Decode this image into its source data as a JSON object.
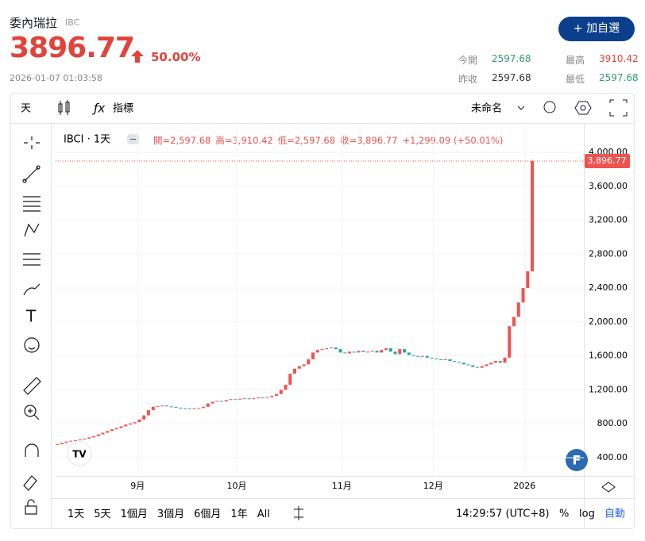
{
  "header": {
    "name": "委內瑞拉",
    "code": "IBC",
    "price": 3896.77,
    "change": "50.00%",
    "timestamp": "2026-01-07 01:03:58",
    "button": "加自選",
    "stats": [
      {
        "label": "今開",
        "value": 2597.68
      },
      {
        "label": "最高",
        "value": 3910.42
      },
      {
        "label": "昨收",
        "value": 2597.68
      },
      {
        "label": "最低",
        "value": 2597.68
      }
    ]
  },
  "toolbar": {
    "interval": "天",
    "indicators": "指標",
    "layout": "未命名"
  },
  "chart_data": {
    "type": "candlestick",
    "symbol": "IBCI · 1天",
    "legend": {
      "open": "開=2,597.68",
      "high": "高=3,910.42",
      "low": "低=2,597.68",
      "close": "收=3,896.77",
      "change": "+1,299.09 (+50.01%)"
    },
    "last_label": "3,896.77",
    "up_color": "#ef5350",
    "down_color": "#26a69a",
    "open": [
      550,
      560,
      575,
      590,
      600,
      605,
      615,
      625,
      640,
      655,
      675,
      695,
      715,
      735,
      750,
      770,
      790,
      805,
      820,
      850,
      900,
      960,
      1000,
      1010,
      1015,
      1005,
      1000,
      990,
      985,
      980,
      975,
      980,
      985,
      1000,
      1040,
      1060,
      1070,
      1065,
      1080,
      1090,
      1085,
      1095,
      1100,
      1090,
      1100,
      1110,
      1105,
      1115,
      1130,
      1150,
      1200,
      1260,
      1390,
      1450,
      1480,
      1500,
      1560,
      1640,
      1670,
      1680,
      1690,
      1700,
      1680,
      1640,
      1630,
      1650,
      1640,
      1660,
      1645,
      1650,
      1660,
      1640,
      1670,
      1690,
      1650,
      1620,
      1680,
      1640,
      1610,
      1600,
      1590,
      1600,
      1580,
      1570,
      1560,
      1550,
      1560,
      1540,
      1530,
      1520,
      1500,
      1490,
      1470,
      1460,
      1480,
      1500,
      1520,
      1540,
      1520,
      1580,
      1950,
      2060,
      2230,
      2400,
      2597.68
    ],
    "close": [
      560,
      575,
      590,
      600,
      605,
      615,
      625,
      640,
      655,
      675,
      695,
      715,
      735,
      750,
      770,
      790,
      805,
      820,
      850,
      900,
      960,
      1000,
      1010,
      1015,
      1005,
      1000,
      990,
      985,
      980,
      975,
      980,
      985,
      1000,
      1040,
      1060,
      1070,
      1065,
      1080,
      1090,
      1085,
      1095,
      1100,
      1090,
      1100,
      1110,
      1105,
      1115,
      1130,
      1150,
      1200,
      1260,
      1390,
      1450,
      1480,
      1500,
      1560,
      1640,
      1670,
      1680,
      1690,
      1700,
      1680,
      1640,
      1630,
      1650,
      1640,
      1660,
      1645,
      1650,
      1660,
      1640,
      1670,
      1690,
      1650,
      1620,
      1680,
      1640,
      1610,
      1600,
      1590,
      1600,
      1580,
      1570,
      1560,
      1550,
      1560,
      1540,
      1530,
      1520,
      1500,
      1490,
      1470,
      1460,
      1480,
      1500,
      1520,
      1540,
      1520,
      1580,
      1950,
      2060,
      2230,
      2400,
      2597.68,
      3896.77
    ],
    "xlim": [
      -0.35,
      115.3
    ],
    "xticks": [
      {
        "value": 17.6,
        "label": "9月"
      },
      {
        "value": 39.3,
        "label": "10月"
      },
      {
        "value": 62.3,
        "label": "11月"
      },
      {
        "value": 82.3,
        "label": "12月"
      },
      {
        "value": 102.3,
        "label": "2026"
      }
    ],
    "ylim": [
      185,
      4318
    ],
    "yticks": [
      {
        "value": 400,
        "label": "400.00"
      },
      {
        "value": 800,
        "label": "800.00"
      },
      {
        "value": 1200,
        "label": "1,200.00"
      },
      {
        "value": 1600,
        "label": "1,600.00"
      },
      {
        "value": 2000,
        "label": "2,000.00"
      },
      {
        "value": 2400,
        "label": "2,400.00"
      },
      {
        "value": 2800,
        "label": "2,800.00"
      },
      {
        "value": 3200,
        "label": "3,200.00"
      },
      {
        "value": 3600,
        "label": "3,600.00"
      },
      {
        "value": 4000,
        "label": "4,000.00"
      }
    ],
    "grid": true
  },
  "footer": {
    "ranges": [
      "1天",
      "5天",
      "1個月",
      "3個月",
      "6個月",
      "1年",
      "All"
    ],
    "time": "14:29:57 (UTC+8)",
    "percent": "%",
    "log": "log",
    "auto": "自動"
  }
}
